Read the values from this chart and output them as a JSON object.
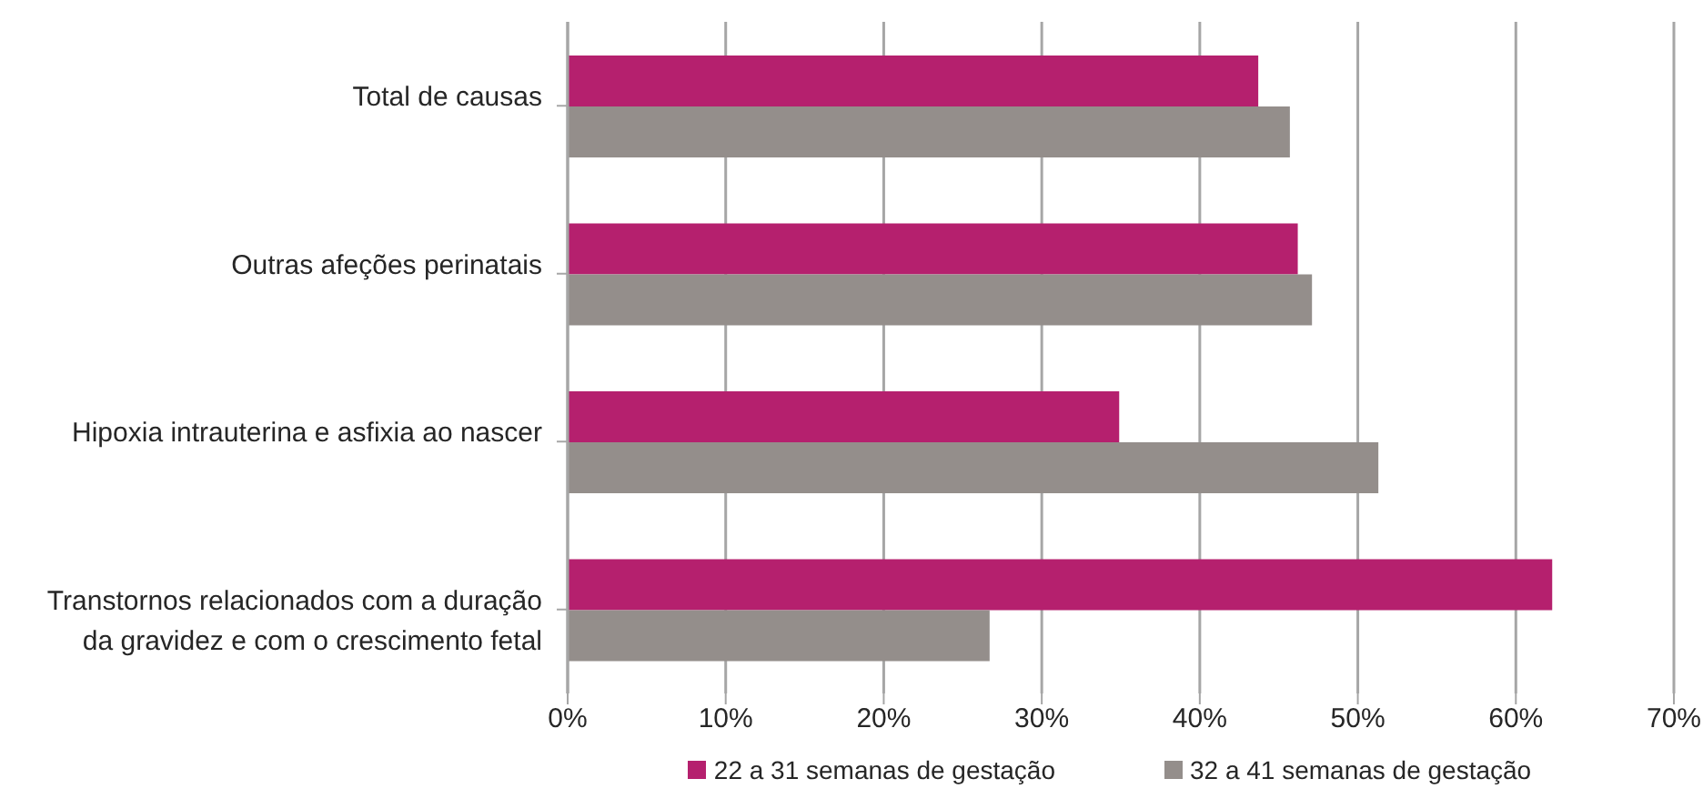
{
  "chart_data": {
    "type": "bar",
    "orientation": "horizontal",
    "categories": [
      "Total de causas",
      "Outras afeções perinatais",
      "Hipoxia intrauterina e asfixia ao nascer",
      "Transtornos relacionados com a duração da gravidez e com o crescimento fetal"
    ],
    "series": [
      {
        "name": "22 a 31 semanas de gestação",
        "color": "#b5206e",
        "values": [
          43.7,
          46.2,
          34.9,
          62.3
        ]
      },
      {
        "name": "32 a 41 semanas de gestação",
        "color": "#948e8b",
        "values": [
          45.7,
          47.1,
          51.3,
          26.7
        ]
      }
    ],
    "xlim": [
      0,
      70
    ],
    "xticks": [
      {
        "value": 0,
        "label": "0%"
      },
      {
        "value": 10,
        "label": "10%"
      },
      {
        "value": 20,
        "label": "20%"
      },
      {
        "value": 30,
        "label": "30%"
      },
      {
        "value": 40,
        "label": "40%"
      },
      {
        "value": 50,
        "label": "50%"
      },
      {
        "value": 60,
        "label": "60%"
      },
      {
        "value": 70,
        "label": "70%"
      }
    ],
    "grid": "x",
    "legend": "bottom"
  }
}
